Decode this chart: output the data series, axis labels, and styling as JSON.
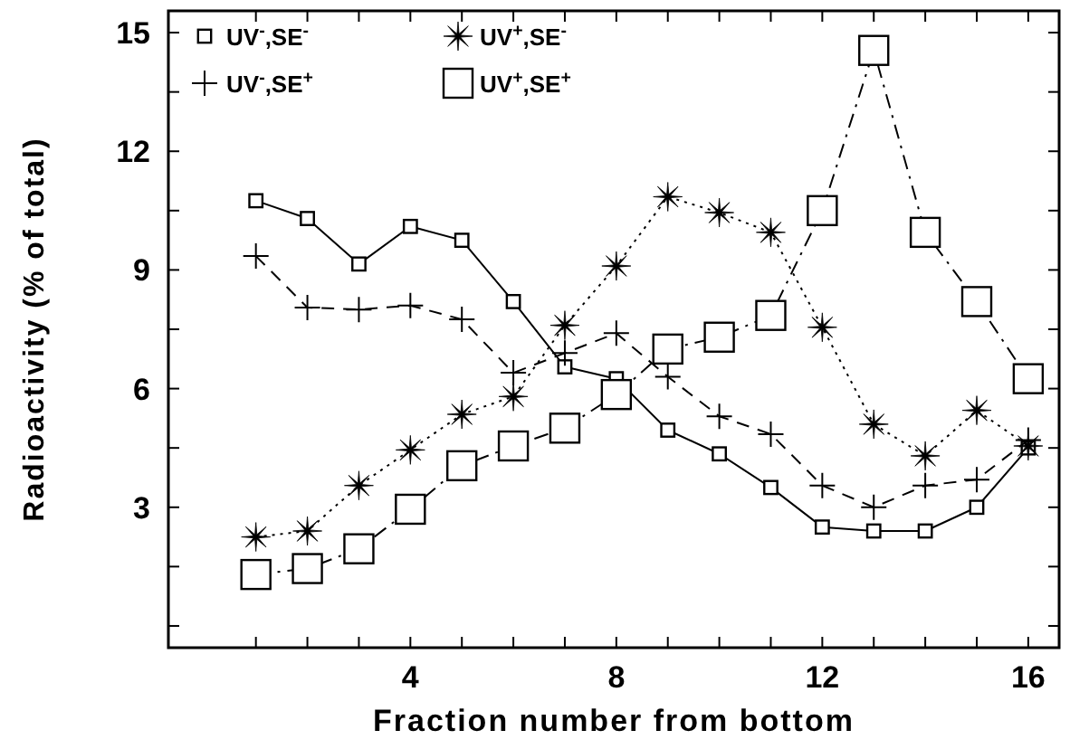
{
  "chart_data": {
    "type": "line",
    "xlabel": "Fraction number from bottom",
    "ylabel": "Radioactivity (% of total)",
    "x": [
      1,
      2,
      3,
      4,
      5,
      6,
      7,
      8,
      9,
      10,
      11,
      12,
      13,
      14,
      15,
      16
    ],
    "xlim": [
      -0.7,
      16.6
    ],
    "xticks": [
      {
        "value": 1,
        "label": null
      },
      {
        "value": 2,
        "label": null
      },
      {
        "value": 3,
        "label": null
      },
      4,
      {
        "value": 5,
        "label": null
      },
      {
        "value": 6,
        "label": null
      },
      {
        "value": 7,
        "label": null
      },
      8,
      {
        "value": 9,
        "label": null
      },
      {
        "value": 10,
        "label": null
      },
      {
        "value": 11,
        "label": null
      },
      12,
      {
        "value": 13,
        "label": null
      },
      {
        "value": 14,
        "label": null
      },
      {
        "value": 15,
        "label": null
      },
      16
    ],
    "ylim": [
      -0.55,
      15.55
    ],
    "yticks": [
      {
        "value": 0,
        "label": null
      },
      {
        "value": 1.5,
        "label": null
      },
      3,
      {
        "value": 4.5,
        "label": null
      },
      6,
      {
        "value": 7.5,
        "label": null
      },
      9,
      {
        "value": 10.5,
        "label": null
      },
      12,
      {
        "value": 13.5,
        "label": null
      },
      15
    ],
    "grid": false,
    "legend": "top left",
    "series": [
      {
        "name": "UV$^{-}$,SE$^{-}$",
        "color": "#000000",
        "marker": "square",
        "line_style": "solid",
        "values": [
          10.75,
          10.3,
          9.15,
          10.1,
          9.75,
          8.2,
          6.55,
          6.25,
          4.95,
          4.35,
          3.5,
          2.5,
          2.4,
          2.4,
          3.0,
          4.5
        ]
      },
      {
        "name": "UV$^{-}$,SE$^{+}$",
        "color": "#000000",
        "marker": "cross",
        "line_style": "dashed",
        "values": [
          9.35,
          8.05,
          8.0,
          8.1,
          7.75,
          6.4,
          6.9,
          7.4,
          6.3,
          5.3,
          4.85,
          3.55,
          3.0,
          3.55,
          3.7,
          4.7
        ]
      },
      {
        "name": "UV$^{+}$,SE$^{-}$",
        "color": "#000000",
        "marker": "star",
        "line_style": "dotted",
        "values": [
          2.25,
          2.4,
          3.55,
          4.45,
          5.35,
          5.8,
          7.6,
          9.1,
          10.85,
          10.45,
          9.95,
          7.55,
          5.1,
          4.3,
          5.45,
          4.55
        ]
      },
      {
        "name": "UV$^{+}$,SE$^{+}$",
        "color": "#000000",
        "marker": "square",
        "line_style": "dashdot",
        "values": [
          1.3,
          1.45,
          1.95,
          2.95,
          4.05,
          4.55,
          5.0,
          5.85,
          7.0,
          7.3,
          7.85,
          10.5,
          14.55,
          9.95,
          8.2,
          6.25
        ]
      }
    ]
  }
}
